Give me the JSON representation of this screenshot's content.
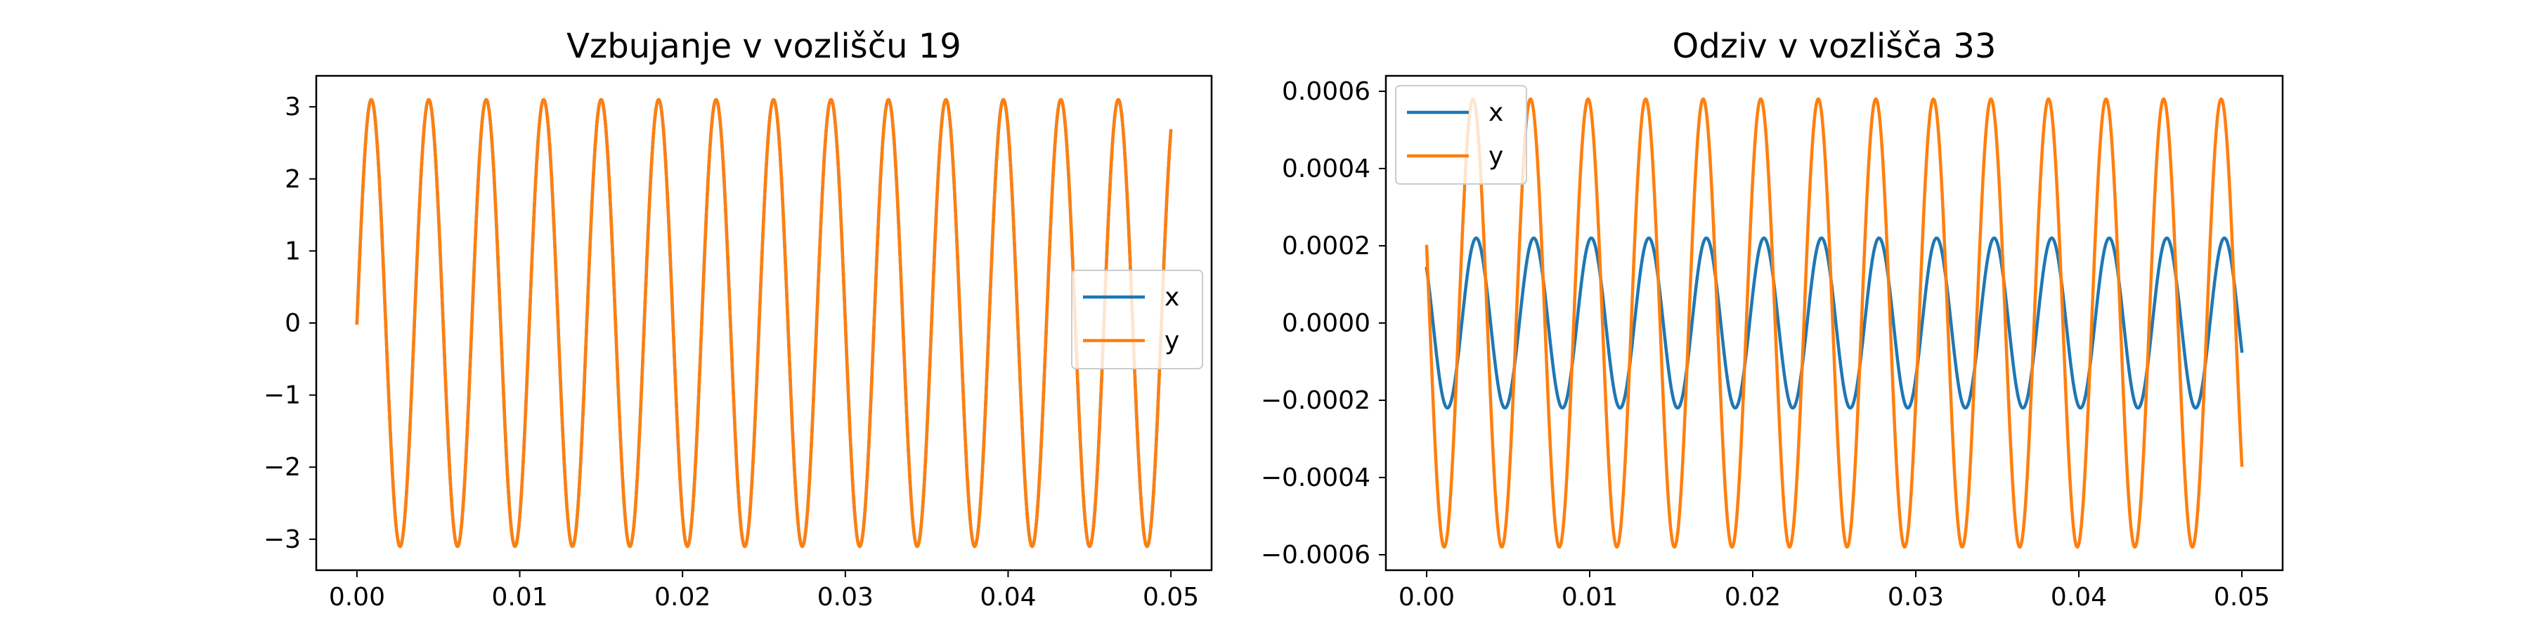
{
  "chart_data": [
    {
      "type": "line",
      "title": "Vzbujanje v vozlišču 19",
      "xlabel": "",
      "ylabel": "",
      "xlim": [
        -0.0025,
        0.0525
      ],
      "ylim": [
        -3.43,
        3.43
      ],
      "xticks": [
        0.0,
        0.01,
        0.02,
        0.03,
        0.04,
        0.05
      ],
      "xtick_labels": [
        "0.00",
        "0.01",
        "0.02",
        "0.03",
        "0.04",
        "0.05"
      ],
      "yticks": [
        -3,
        -2,
        -1,
        0,
        1,
        2,
        3
      ],
      "ytick_labels": [
        "−3",
        "−2",
        "−1",
        "0",
        "1",
        "2",
        "3"
      ],
      "legend": "center-right",
      "grid": false,
      "x_range": [
        0.0,
        0.05
      ],
      "series": [
        {
          "name": "x",
          "color": "#1f77b4",
          "amplitude": 3.1,
          "frequency_hz": 283.3,
          "phase_deg": 0
        },
        {
          "name": "y",
          "color": "#ff7f0e",
          "amplitude": 3.1,
          "frequency_hz": 283.3,
          "phase_deg": 0
        }
      ]
    },
    {
      "type": "line",
      "title": "Odziv v vozlišča 33",
      "xlabel": "",
      "ylabel": "",
      "xlim": [
        -0.0025,
        0.0525
      ],
      "ylim": [
        -0.00064,
        0.00064
      ],
      "xticks": [
        0.0,
        0.01,
        0.02,
        0.03,
        0.04,
        0.05
      ],
      "xtick_labels": [
        "0.00",
        "0.01",
        "0.02",
        "0.03",
        "0.04",
        "0.05"
      ],
      "yticks": [
        -0.0006,
        -0.0004,
        -0.0002,
        0.0,
        0.0002,
        0.0004,
        0.0006
      ],
      "ytick_labels": [
        "−0.0006",
        "−0.0004",
        "−0.0002",
        "0.0000",
        "0.0002",
        "0.0004",
        "0.0006"
      ],
      "legend": "upper-left",
      "grid": false,
      "x_range": [
        0.0,
        0.05
      ],
      "series": [
        {
          "name": "x",
          "color": "#1f77b4",
          "amplitude": 0.00022,
          "frequency_hz": 283.3,
          "phase_deg": 140
        },
        {
          "name": "y",
          "color": "#ff7f0e",
          "amplitude": 0.00058,
          "frequency_hz": 283.3,
          "phase_deg": 160
        }
      ]
    }
  ]
}
